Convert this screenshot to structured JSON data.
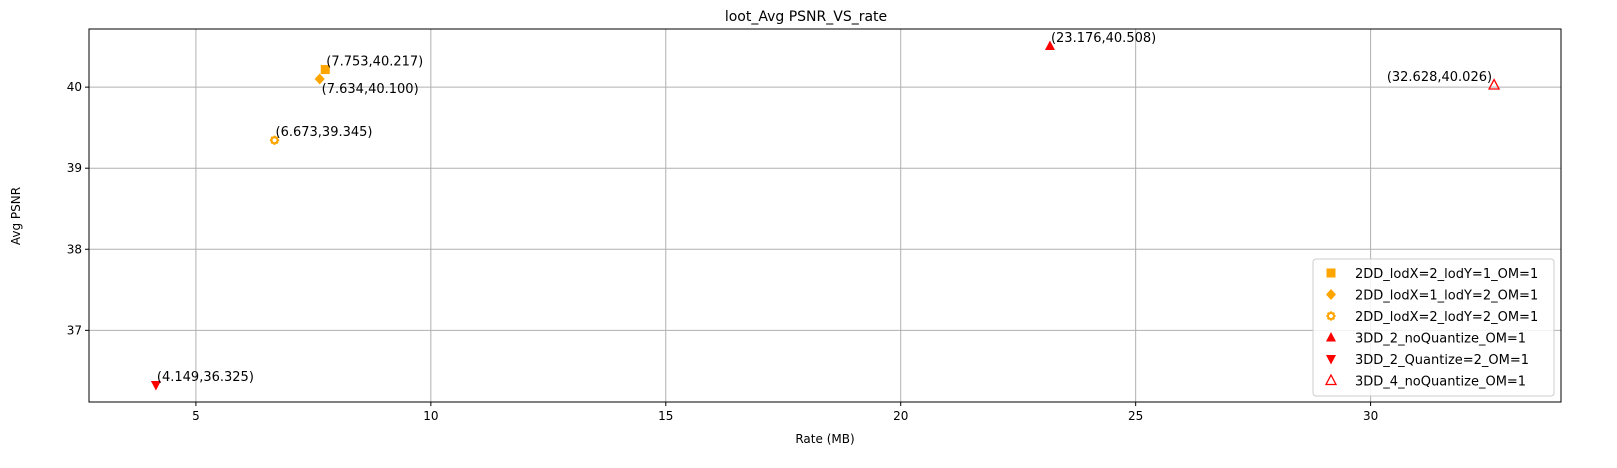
{
  "chart_data": {
    "type": "scatter",
    "title": "loot_Avg PSNR_VS_rate",
    "xlabel": "Rate (MB)",
    "ylabel": "Avg PSNR",
    "xlim": [
      2.725,
      34.052
    ],
    "ylim": [
      36.116,
      40.717
    ],
    "xticks": [
      5,
      10,
      15,
      20,
      25,
      30
    ],
    "yticks": [
      37,
      38,
      39,
      40
    ],
    "grid": true,
    "legend_position": "bottom-right",
    "series": [
      {
        "name": "2DD_lodX=2_lodY=1_OM=1",
        "marker": "square",
        "color": "#FFA500",
        "filled": true,
        "points": [
          {
            "x": 7.753,
            "y": 40.217,
            "label": "(7.753,40.217)",
            "label_pos": "above-right"
          }
        ]
      },
      {
        "name": "2DD_lodX=1_lodY=2_OM=1",
        "marker": "diamond",
        "color": "#FFA500",
        "filled": true,
        "points": [
          {
            "x": 7.634,
            "y": 40.1,
            "label": "(7.634,40.100)",
            "label_pos": "below-right"
          }
        ]
      },
      {
        "name": "2DD_lodX=2_lodY=2_OM=1",
        "marker": "gear",
        "color": "#FFA500",
        "filled": false,
        "points": [
          {
            "x": 6.673,
            "y": 39.345,
            "label": "(6.673,39.345)",
            "label_pos": "above-right"
          }
        ]
      },
      {
        "name": "3DD_2_noQuantize_OM=1",
        "marker": "triangle-up",
        "color": "#FF0000",
        "filled": true,
        "points": [
          {
            "x": 23.176,
            "y": 40.508,
            "label": "(23.176,40.508)",
            "label_pos": "above-right"
          }
        ]
      },
      {
        "name": "3DD_2_Quantize=2_OM=1",
        "marker": "triangle-down",
        "color": "#FF0000",
        "filled": true,
        "points": [
          {
            "x": 4.149,
            "y": 36.325,
            "label": "(4.149,36.325)",
            "label_pos": "above-right"
          }
        ]
      },
      {
        "name": "3DD_4_noQuantize_OM=1",
        "marker": "triangle-up",
        "color": "#FF0000",
        "filled": false,
        "points": [
          {
            "x": 32.628,
            "y": 40.026,
            "label": "(32.628,40.026)",
            "label_pos": "above-left"
          }
        ]
      }
    ]
  }
}
